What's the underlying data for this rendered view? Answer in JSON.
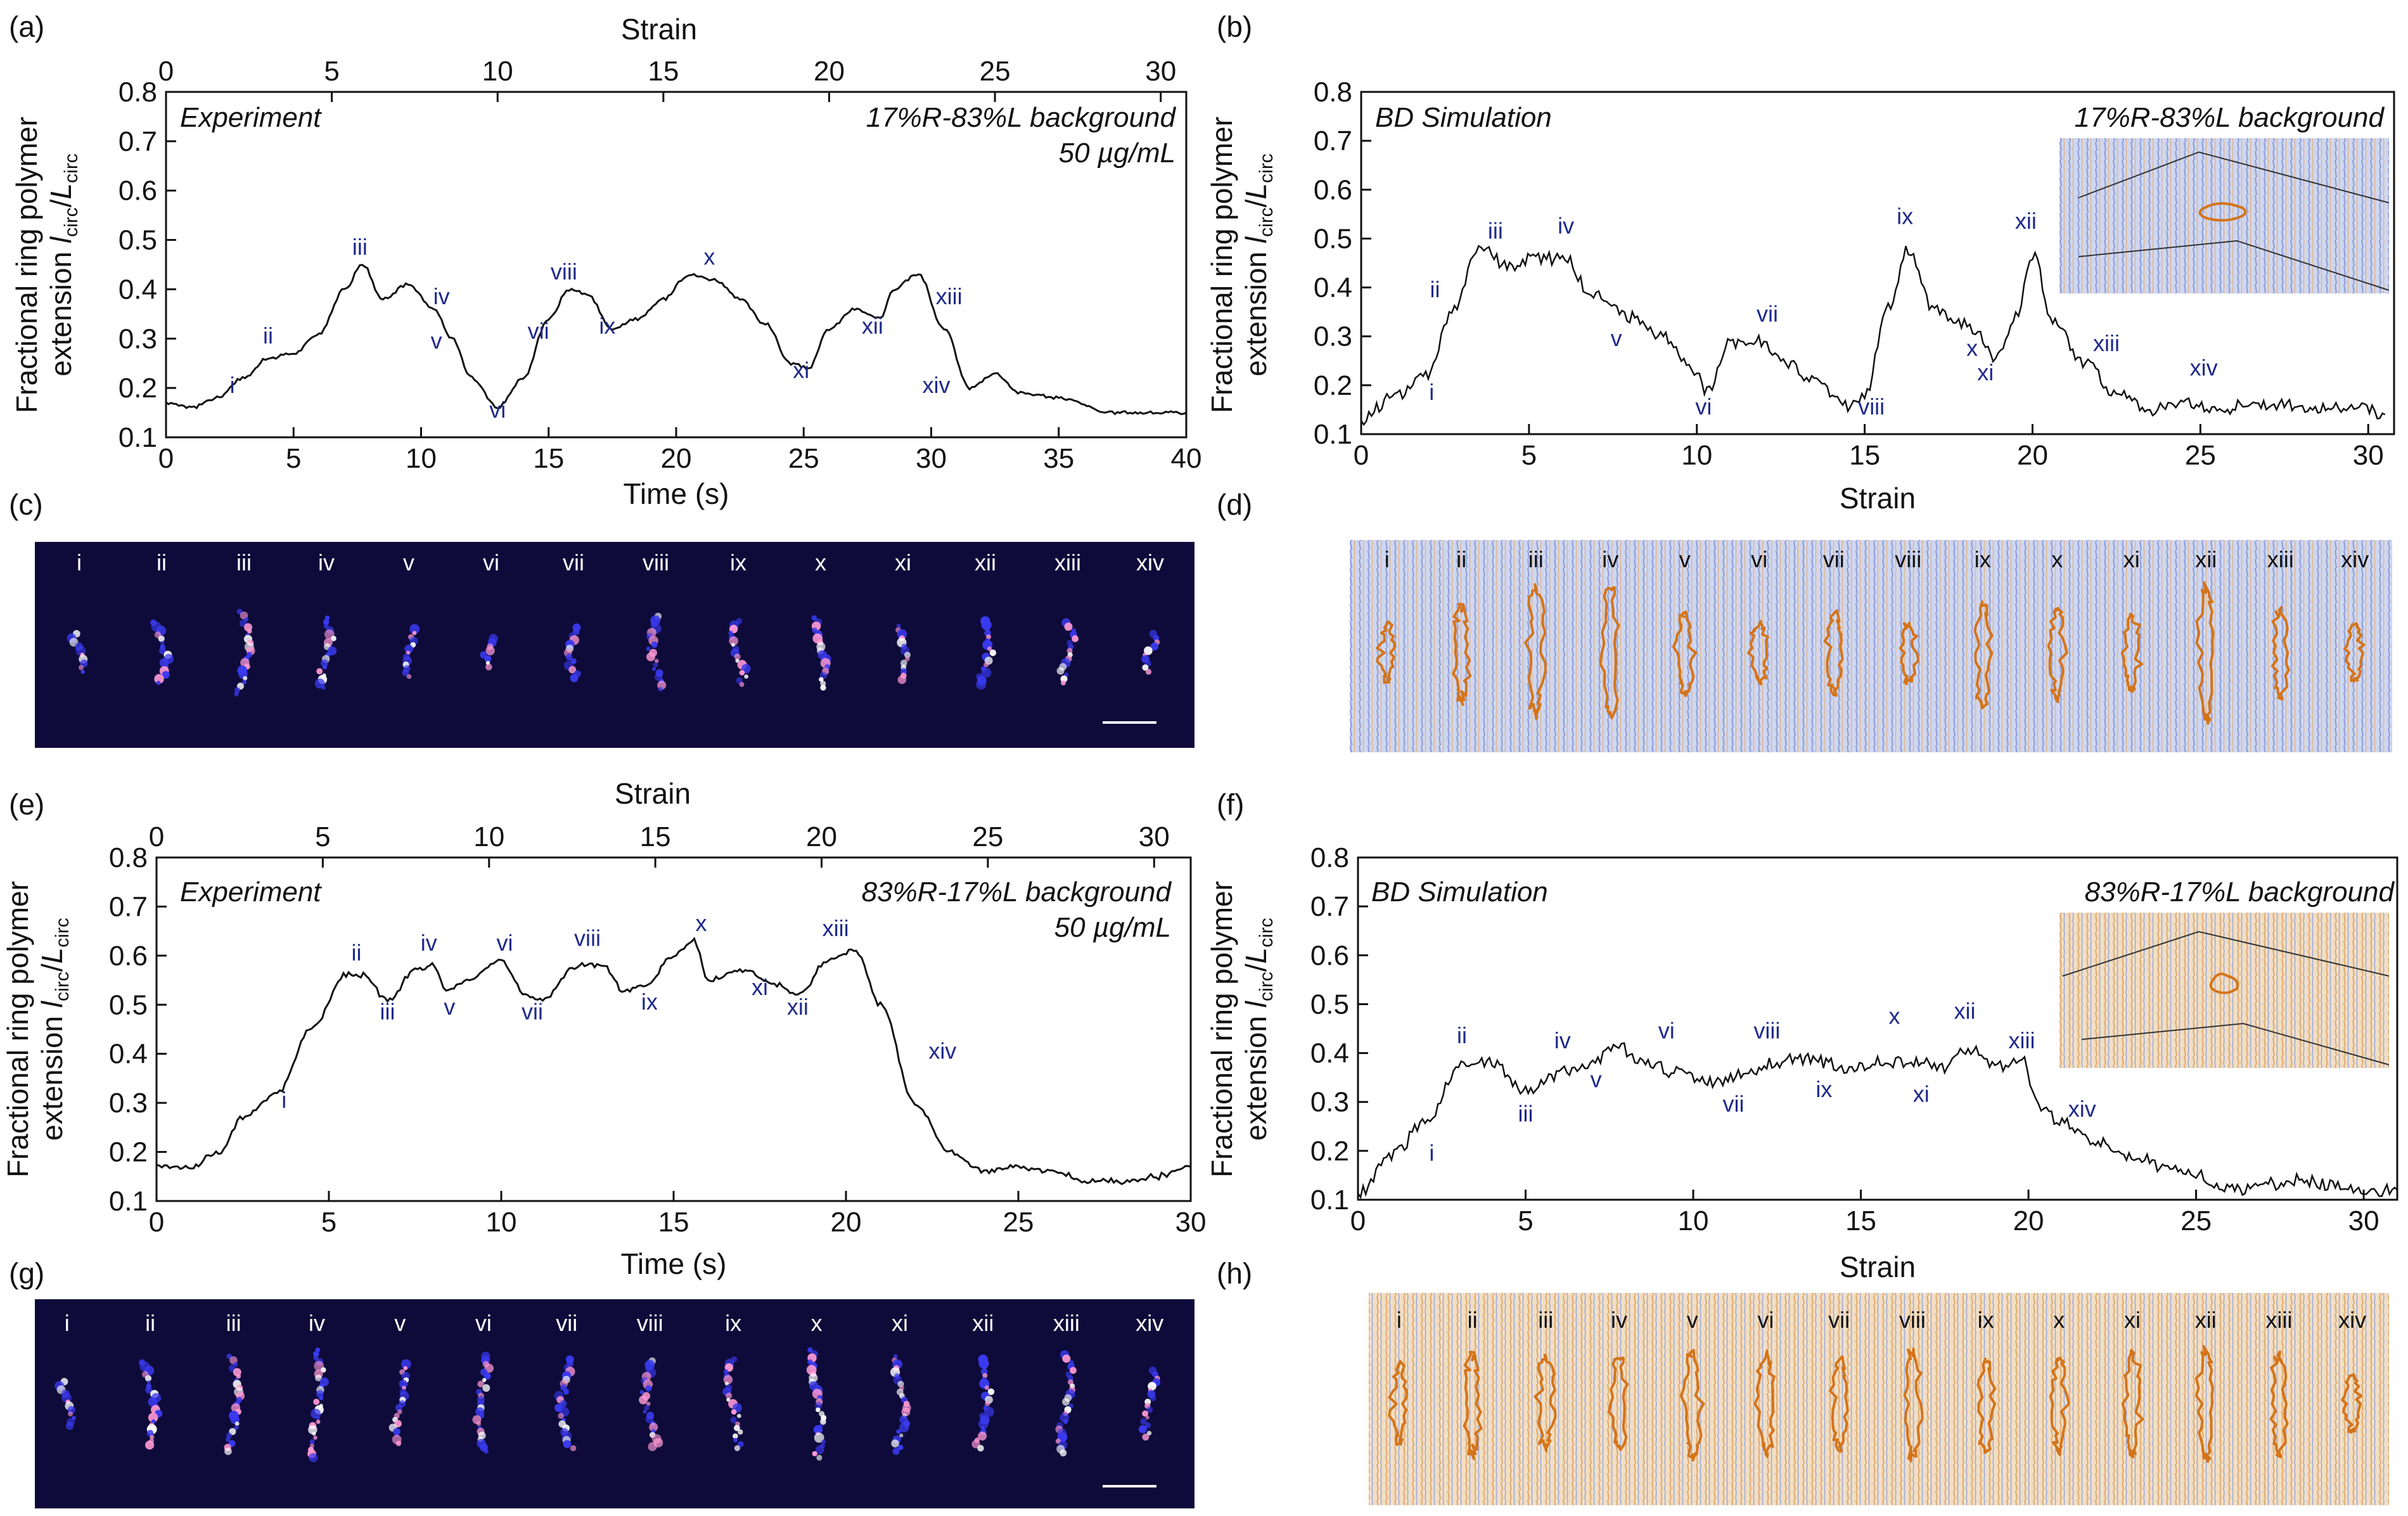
{
  "panels": {
    "a": {
      "label": "(a)",
      "top_axis_title": "Strain",
      "top_ticks": [
        "0",
        "5",
        "10",
        "15",
        "20",
        "25",
        "30"
      ],
      "top_range": [
        0,
        30.77
      ],
      "x_title": "Time (s)",
      "x_ticks": [
        "0",
        "5",
        "10",
        "15",
        "20",
        "25",
        "30",
        "35",
        "40"
      ],
      "x_range": [
        0,
        40
      ],
      "y_title_line1": "Fractional ring polymer",
      "y_title_line2": "extension l_circ/L_circ",
      "y_ticks": [
        "0.1",
        "0.2",
        "0.3",
        "0.4",
        "0.5",
        "0.6",
        "0.7",
        "0.8"
      ],
      "y_range": [
        0.1,
        0.8
      ],
      "annotation_left": "Experiment",
      "annotation_right_1": "17%R-83%L background",
      "annotation_right_2": "50 µg/mL"
    },
    "b": {
      "label": "(b)",
      "x_title": "Strain",
      "x_ticks": [
        "0",
        "5",
        "10",
        "15",
        "20",
        "25",
        "30"
      ],
      "x_range": [
        0,
        30.77
      ],
      "y_title_line1": "Fractional ring polymer",
      "y_title_line2": "extension l_circ/L_circ",
      "y_ticks": [
        "0.1",
        "0.2",
        "0.3",
        "0.4",
        "0.5",
        "0.6",
        "0.7",
        "0.8"
      ],
      "y_range": [
        0.1,
        0.8
      ],
      "annotation_left": "BD Simulation",
      "annotation_right_1": "17%R-83%L background"
    },
    "c": {
      "label": "(c)"
    },
    "d": {
      "label": "(d)"
    },
    "e": {
      "label": "(e)",
      "top_axis_title": "Strain",
      "top_ticks": [
        "0",
        "5",
        "10",
        "15",
        "20",
        "25",
        "30"
      ],
      "top_range": [
        0,
        31.1
      ],
      "x_title": "Time (s)",
      "x_ticks": [
        "0",
        "5",
        "10",
        "15",
        "20",
        "25",
        "30"
      ],
      "x_range": [
        0,
        30
      ],
      "y_title_line1": "Fractional ring polymer",
      "y_title_line2": "extension l_circ/L_circ",
      "y_ticks": [
        "0.1",
        "0.2",
        "0.3",
        "0.4",
        "0.5",
        "0.6",
        "0.7",
        "0.8"
      ],
      "y_range": [
        0.1,
        0.8
      ],
      "annotation_left": "Experiment",
      "annotation_right_1": "83%R-17%L background",
      "annotation_right_2": "50 µg/mL"
    },
    "f": {
      "label": "(f)",
      "x_title": "Strain",
      "x_ticks": [
        "0",
        "5",
        "10",
        "15",
        "20",
        "25",
        "30"
      ],
      "x_range": [
        0,
        31
      ],
      "y_title_line1": "Fractional ring polymer",
      "y_title_line2": "extension l_circ/L_circ",
      "y_ticks": [
        "0.1",
        "0.2",
        "0.3",
        "0.4",
        "0.5",
        "0.6",
        "0.7",
        "0.8"
      ],
      "y_range": [
        0.1,
        0.8
      ],
      "annotation_left": "BD Simulation",
      "annotation_right_1": "83%R-17%L background"
    },
    "g": {
      "label": "(g)"
    },
    "h": {
      "label": "(h)"
    }
  },
  "romans": [
    "i",
    "ii",
    "iii",
    "iv",
    "v",
    "vi",
    "vii",
    "viii",
    "ix",
    "x",
    "xi",
    "xii",
    "xiii",
    "xiv"
  ],
  "colors": {
    "trace": "#111111",
    "roman_label": "#1f2a8c",
    "micrograph_bg": "#0e0b3a",
    "ring_orange": "#d4741a",
    "sim_bg_blue": "#c9d3ef",
    "sim_bg_orange": "#f1dcc0"
  },
  "chart_data": [
    {
      "panel": "a",
      "type": "line",
      "title": "",
      "xlabel": "Time (s)",
      "ylabel": "Fractional ring polymer extension l_circ/L_circ",
      "xlim": [
        0,
        40
      ],
      "ylim": [
        0.1,
        0.8
      ],
      "x": [
        0,
        1,
        2,
        3,
        4,
        5,
        6,
        7,
        7.7,
        8.5,
        9.5,
        10.5,
        11.2,
        12,
        13,
        14,
        15,
        15.8,
        16.5,
        17.5,
        18.5,
        19.5,
        20.5,
        21.5,
        22.5,
        23.5,
        24.5,
        25.2,
        26,
        27,
        28,
        28.5,
        29.5,
        30.5,
        31.5,
        32.5,
        33.5,
        35,
        37,
        39,
        40
      ],
      "values": [
        0.17,
        0.16,
        0.18,
        0.22,
        0.26,
        0.27,
        0.31,
        0.4,
        0.45,
        0.38,
        0.41,
        0.36,
        0.3,
        0.22,
        0.16,
        0.22,
        0.34,
        0.4,
        0.39,
        0.32,
        0.34,
        0.38,
        0.43,
        0.42,
        0.38,
        0.33,
        0.25,
        0.24,
        0.32,
        0.36,
        0.34,
        0.4,
        0.43,
        0.32,
        0.2,
        0.23,
        0.19,
        0.18,
        0.15,
        0.15,
        0.15
      ],
      "labels": [
        {
          "text": "i",
          "x": 2.6,
          "y": 0.19
        },
        {
          "text": "ii",
          "x": 4.0,
          "y": 0.29
        },
        {
          "text": "iii",
          "x": 7.6,
          "y": 0.47
        },
        {
          "text": "iv",
          "x": 10.8,
          "y": 0.37
        },
        {
          "text": "v",
          "x": 10.6,
          "y": 0.28
        },
        {
          "text": "vi",
          "x": 13.0,
          "y": 0.14
        },
        {
          "text": "vii",
          "x": 14.6,
          "y": 0.3
        },
        {
          "text": "viii",
          "x": 15.6,
          "y": 0.42
        },
        {
          "text": "ix",
          "x": 17.3,
          "y": 0.31
        },
        {
          "text": "x",
          "x": 21.3,
          "y": 0.45
        },
        {
          "text": "xi",
          "x": 24.9,
          "y": 0.22
        },
        {
          "text": "xii",
          "x": 27.7,
          "y": 0.31
        },
        {
          "text": "xiii",
          "x": 30.7,
          "y": 0.37
        },
        {
          "text": "xiv",
          "x": 30.2,
          "y": 0.19
        }
      ]
    },
    {
      "panel": "b",
      "type": "line",
      "title": "BD Simulation",
      "xlabel": "Strain",
      "ylabel": "Fractional ring polymer extension l_circ/L_circ",
      "xlim": [
        0,
        30.77
      ],
      "ylim": [
        0.1,
        0.8
      ],
      "x": [
        0,
        1,
        2,
        2.7,
        3.5,
        4.5,
        5.2,
        6,
        7,
        8,
        9,
        10,
        10.3,
        11,
        12,
        12.5,
        13.5,
        14.5,
        15,
        15.7,
        16.3,
        17,
        17.8,
        18.3,
        18.9,
        19.5,
        20,
        20.6,
        21.5,
        22.5,
        23.5,
        24.5,
        25.5,
        26.5,
        27.5,
        28.5,
        29.5,
        30.5
      ],
      "values": [
        0.13,
        0.18,
        0.22,
        0.35,
        0.48,
        0.44,
        0.46,
        0.46,
        0.38,
        0.34,
        0.3,
        0.22,
        0.19,
        0.29,
        0.29,
        0.25,
        0.21,
        0.16,
        0.18,
        0.36,
        0.48,
        0.36,
        0.33,
        0.31,
        0.26,
        0.34,
        0.47,
        0.33,
        0.25,
        0.18,
        0.15,
        0.16,
        0.15,
        0.16,
        0.16,
        0.15,
        0.16,
        0.14
      ],
      "labels": [
        {
          "text": "i",
          "x": 2.1,
          "y": 0.17
        },
        {
          "text": "ii",
          "x": 2.2,
          "y": 0.38
        },
        {
          "text": "iii",
          "x": 4.0,
          "y": 0.5
        },
        {
          "text": "iv",
          "x": 6.1,
          "y": 0.51
        },
        {
          "text": "v",
          "x": 7.6,
          "y": 0.28
        },
        {
          "text": "vi",
          "x": 10.2,
          "y": 0.14
        },
        {
          "text": "vii",
          "x": 12.1,
          "y": 0.33
        },
        {
          "text": "viii",
          "x": 15.2,
          "y": 0.14
        },
        {
          "text": "ix",
          "x": 16.2,
          "y": 0.53
        },
        {
          "text": "x",
          "x": 18.2,
          "y": 0.26
        },
        {
          "text": "xi",
          "x": 18.6,
          "y": 0.21
        },
        {
          "text": "xii",
          "x": 19.8,
          "y": 0.52
        },
        {
          "text": "xiii",
          "x": 22.2,
          "y": 0.27
        },
        {
          "text": "xiv",
          "x": 25.1,
          "y": 0.22
        }
      ]
    },
    {
      "panel": "e",
      "type": "line",
      "title": "",
      "xlabel": "Time (s)",
      "ylabel": "Fractional ring polymer extension l_circ/L_circ",
      "xlim": [
        0,
        30
      ],
      "ylim": [
        0.1,
        0.8
      ],
      "x": [
        0,
        1,
        1.8,
        2.5,
        3.5,
        4.5,
        5.5,
        6,
        6.7,
        7.5,
        8,
        8.4,
        9,
        10,
        10.7,
        11.2,
        12.2,
        13,
        13.5,
        14.2,
        15,
        15.6,
        16,
        17,
        18,
        18.6,
        19.5,
        20.3,
        21,
        22,
        23,
        24,
        25,
        26,
        27,
        28,
        29,
        30
      ],
      "values": [
        0.17,
        0.17,
        0.2,
        0.27,
        0.32,
        0.45,
        0.56,
        0.56,
        0.51,
        0.57,
        0.58,
        0.53,
        0.55,
        0.59,
        0.52,
        0.51,
        0.58,
        0.58,
        0.53,
        0.54,
        0.6,
        0.63,
        0.55,
        0.57,
        0.54,
        0.52,
        0.59,
        0.61,
        0.5,
        0.3,
        0.2,
        0.16,
        0.17,
        0.16,
        0.14,
        0.14,
        0.15,
        0.17
      ],
      "labels": [
        {
          "text": "i",
          "x": 3.7,
          "y": 0.29
        },
        {
          "text": "ii",
          "x": 5.8,
          "y": 0.59
        },
        {
          "text": "iii",
          "x": 6.7,
          "y": 0.47
        },
        {
          "text": "iv",
          "x": 7.9,
          "y": 0.61
        },
        {
          "text": "v",
          "x": 8.5,
          "y": 0.48
        },
        {
          "text": "vi",
          "x": 10.1,
          "y": 0.61
        },
        {
          "text": "vii",
          "x": 10.9,
          "y": 0.47
        },
        {
          "text": "viii",
          "x": 12.5,
          "y": 0.62
        },
        {
          "text": "ix",
          "x": 14.3,
          "y": 0.49
        },
        {
          "text": "x",
          "x": 15.8,
          "y": 0.65
        },
        {
          "text": "xi",
          "x": 17.5,
          "y": 0.52
        },
        {
          "text": "xii",
          "x": 18.6,
          "y": 0.48
        },
        {
          "text": "xiii",
          "x": 19.7,
          "y": 0.64
        },
        {
          "text": "xiv",
          "x": 22.8,
          "y": 0.39
        }
      ]
    },
    {
      "panel": "f",
      "type": "line",
      "title": "BD Simulation",
      "xlabel": "Strain",
      "ylabel": "Fractional ring polymer extension l_circ/L_circ",
      "xlim": [
        0,
        31
      ],
      "ylim": [
        0.1,
        0.8
      ],
      "x": [
        0,
        1,
        2,
        3,
        4,
        5,
        6,
        7,
        7.7,
        8.5,
        9.5,
        10.5,
        11.5,
        12.5,
        13.5,
        14.5,
        15.5,
        16.5,
        17.5,
        18.2,
        19,
        19.8,
        20.3,
        21,
        22,
        23,
        24,
        25,
        26,
        27,
        28,
        29,
        30,
        31
      ],
      "values": [
        0.11,
        0.19,
        0.26,
        0.37,
        0.38,
        0.32,
        0.36,
        0.38,
        0.42,
        0.38,
        0.36,
        0.34,
        0.36,
        0.38,
        0.39,
        0.37,
        0.38,
        0.38,
        0.37,
        0.41,
        0.37,
        0.39,
        0.29,
        0.26,
        0.22,
        0.19,
        0.17,
        0.15,
        0.12,
        0.13,
        0.14,
        0.13,
        0.12,
        0.12
      ],
      "labels": [
        {
          "text": "i",
          "x": 2.2,
          "y": 0.18
        },
        {
          "text": "ii",
          "x": 3.1,
          "y": 0.42
        },
        {
          "text": "iii",
          "x": 5.0,
          "y": 0.26
        },
        {
          "text": "iv",
          "x": 6.1,
          "y": 0.41
        },
        {
          "text": "v",
          "x": 7.1,
          "y": 0.33
        },
        {
          "text": "vi",
          "x": 9.2,
          "y": 0.43
        },
        {
          "text": "vii",
          "x": 11.2,
          "y": 0.28
        },
        {
          "text": "viii",
          "x": 12.2,
          "y": 0.43
        },
        {
          "text": "ix",
          "x": 13.9,
          "y": 0.31
        },
        {
          "text": "x",
          "x": 16.0,
          "y": 0.46
        },
        {
          "text": "xi",
          "x": 16.8,
          "y": 0.3
        },
        {
          "text": "xii",
          "x": 18.1,
          "y": 0.47
        },
        {
          "text": "xiii",
          "x": 19.8,
          "y": 0.41
        },
        {
          "text": "xiv",
          "x": 21.6,
          "y": 0.27
        }
      ]
    }
  ]
}
